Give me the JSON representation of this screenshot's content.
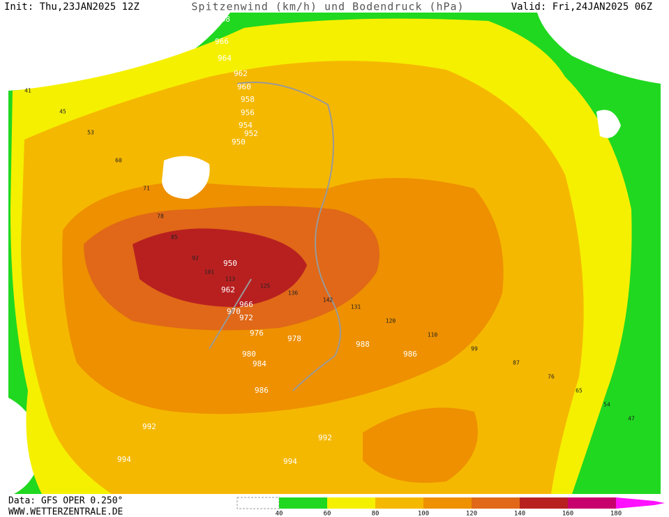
{
  "header": {
    "init": "Init: Thu,23JAN2025 12Z",
    "title": "Spitzenwind (km/h) und Bodendruck (hPa)",
    "valid": "Valid: Fri,24JAN2025 06Z"
  },
  "footer": {
    "data": "Data: GFS OPER 0.250°",
    "site": "WWW.WETTERZENTRALE.DE"
  },
  "colorbar": {
    "ticks": [
      40,
      60,
      80,
      100,
      120,
      140,
      160,
      180
    ],
    "colors": [
      "#20d820",
      "#f5f000",
      "#f5b800",
      "#ee9000",
      "#e06818",
      "#b82020",
      "#c8006e",
      "#ff10ff"
    ]
  },
  "isobar_labels": [
    968,
    966,
    964,
    962,
    960,
    958,
    956,
    954,
    952,
    950,
    950,
    962,
    966,
    970,
    972,
    976,
    978,
    980,
    984,
    986,
    986,
    988,
    992,
    992,
    994,
    994
  ],
  "wind_labels": [
    41,
    45,
    53,
    60,
    71,
    78,
    85,
    92,
    101,
    113,
    125,
    136,
    142,
    131,
    120,
    110,
    99,
    87,
    76,
    65,
    54,
    47
  ]
}
